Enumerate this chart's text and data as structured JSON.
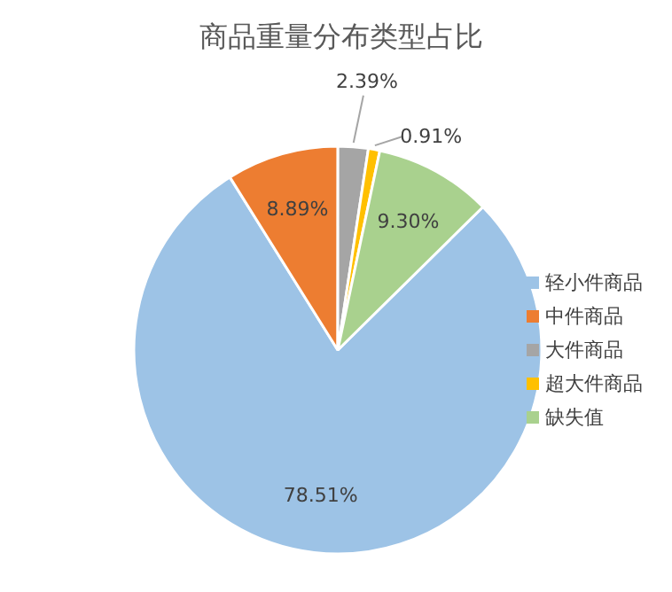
{
  "chart_data": {
    "type": "pie",
    "title": "商品重量分布类型占比",
    "categories": [
      "轻小件商品",
      "中件商品",
      "大件商品",
      "超大件商品",
      "缺失值"
    ],
    "values": [
      78.51,
      8.89,
      2.39,
      0.91,
      9.3
    ],
    "colors": [
      "#9dc3e6",
      "#ed7d31",
      "#a5a5a5",
      "#ffc000",
      "#a9d18e"
    ],
    "value_labels": [
      "78.51%",
      "8.89%",
      "2.39%",
      "0.91%",
      "9.30%"
    ],
    "legend": "right"
  }
}
